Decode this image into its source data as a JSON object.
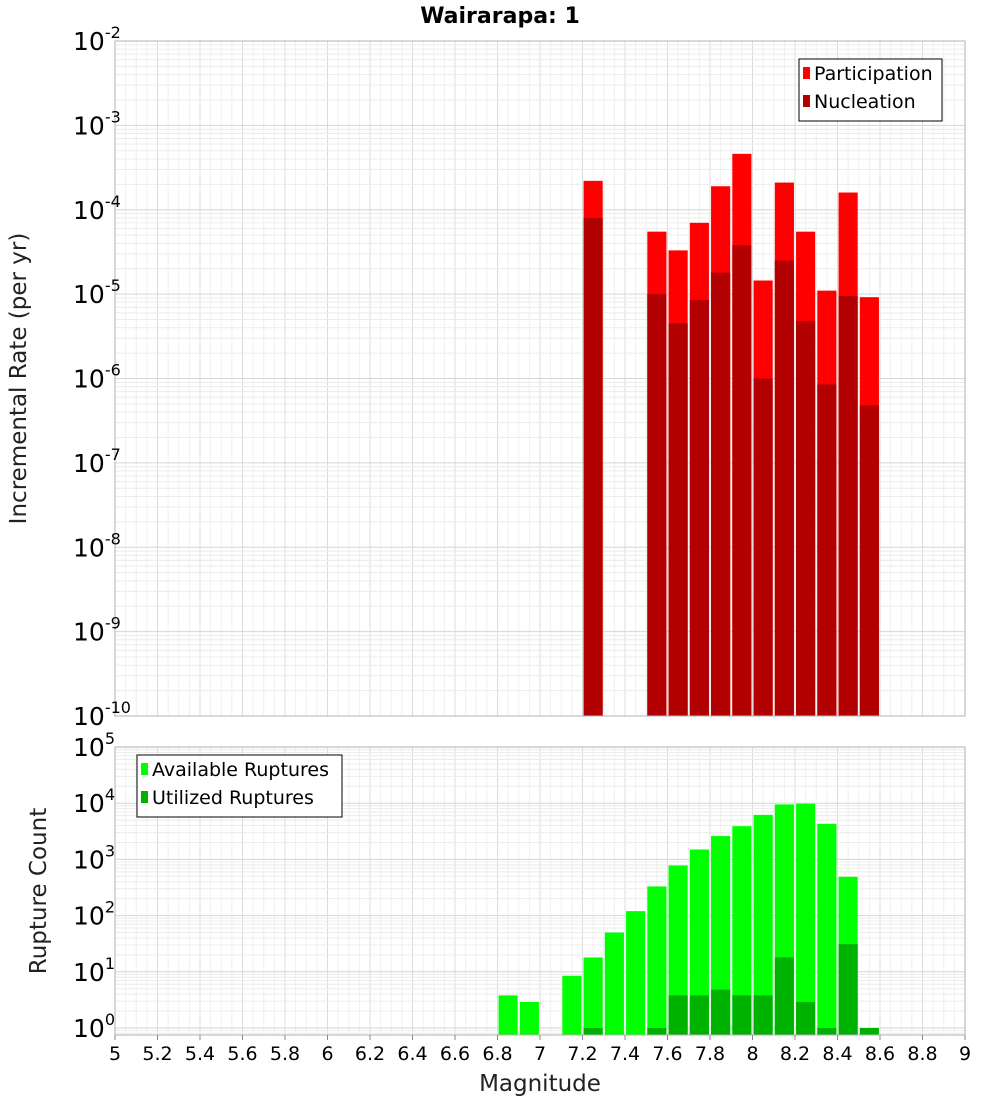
{
  "title": "Wairarapa: 1",
  "colors": {
    "participation": "#ff0000",
    "nucleation": "#b20000",
    "available": "#00ff00",
    "utilized": "#00b200",
    "grid": "#e6e6e6",
    "plot_border": "#b0b0b0"
  },
  "x_axis": {
    "label": "Magnitude",
    "range": [
      5,
      9
    ],
    "ticks": [
      "5",
      "5.2",
      "5.4",
      "5.6",
      "5.8",
      "6",
      "6.2",
      "6.4",
      "6.6",
      "6.8",
      "7",
      "7.2",
      "7.4",
      "7.6",
      "7.8",
      "8",
      "8.2",
      "8.4",
      "8.6",
      "8.8",
      "9"
    ]
  },
  "chart_data": [
    {
      "type": "bar",
      "log_scale": "y",
      "ylabel": "Incremental Rate (per yr)",
      "ylim": [
        1e-10,
        0.01
      ],
      "y_tick_exponents": [
        -2,
        -3,
        -4,
        -5,
        -6,
        -7,
        -8,
        -9,
        -10
      ],
      "grid": true,
      "legend_position": "top-right",
      "bar_width": 0.09,
      "series": [
        {
          "name": "Participation",
          "x": [
            7.25,
            7.55,
            7.65,
            7.75,
            7.85,
            7.95,
            8.05,
            8.15,
            8.25,
            8.35,
            8.45,
            8.55
          ],
          "values": [
            0.00022,
            5.5e-05,
            3.3e-05,
            7e-05,
            0.00019,
            0.00046,
            1.45e-05,
            0.00021,
            5.5e-05,
            1.1e-05,
            0.00016,
            9.2e-06
          ]
        },
        {
          "name": "Nucleation",
          "x": [
            7.25,
            7.55,
            7.65,
            7.75,
            7.85,
            7.95,
            8.05,
            8.15,
            8.25,
            8.35,
            8.45,
            8.55
          ],
          "values": [
            8e-05,
            1e-05,
            4.5e-06,
            8.5e-06,
            1.8e-05,
            3.8e-05,
            1e-06,
            2.5e-05,
            4.8e-06,
            8.5e-07,
            9.5e-06,
            4.8e-07
          ]
        }
      ]
    },
    {
      "type": "bar",
      "log_scale": "y",
      "ylabel": "Rupture Count",
      "ylim": [
        0.75,
        100000.0
      ],
      "y_tick_exponents": [
        5,
        4,
        3,
        2,
        1,
        0
      ],
      "grid": true,
      "legend_position": "top-left",
      "bar_width": 0.09,
      "series": [
        {
          "name": "Available Ruptures",
          "x": [
            6.85,
            6.95,
            7.15,
            7.25,
            7.35,
            7.45,
            7.55,
            7.65,
            7.75,
            7.85,
            7.95,
            8.05,
            8.15,
            8.25,
            8.35,
            8.45
          ],
          "values": [
            3.8,
            2.9,
            8.5,
            18,
            50,
            120,
            330,
            780,
            1500,
            2600,
            3900,
            6200,
            9500,
            9800,
            4300,
            490
          ]
        },
        {
          "name": "Utilized Ruptures",
          "x": [
            7.25,
            7.55,
            7.65,
            7.75,
            7.85,
            7.95,
            8.05,
            8.15,
            8.25,
            8.35,
            8.45,
            8.55
          ],
          "values": [
            1,
            1,
            3.8,
            3.8,
            4.8,
            3.8,
            3.8,
            18,
            2.9,
            1,
            31,
            1
          ]
        }
      ]
    }
  ]
}
